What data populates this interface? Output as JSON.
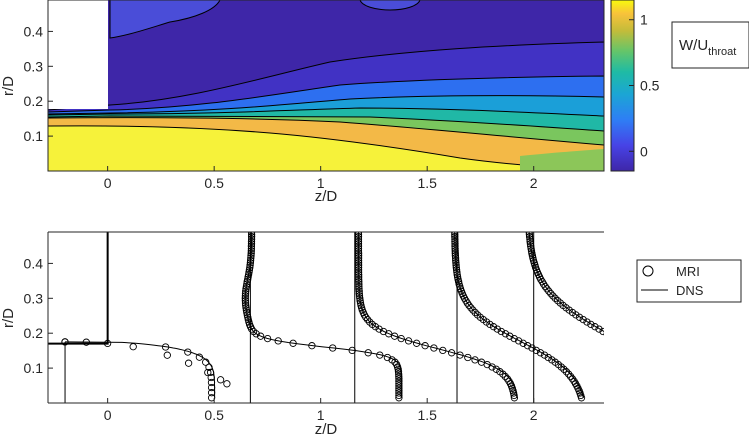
{
  "chart_data": [
    {
      "type": "heatmap",
      "description_panel": "top",
      "xlabel": "z/D",
      "ylabel": "r/D",
      "xlim": [
        -0.28,
        2.33
      ],
      "ylim": [
        0,
        0.49
      ],
      "xticks": [
        "0",
        "0.5",
        "1",
        "1.5",
        "2"
      ],
      "xtick_values": [
        0,
        0.5,
        1,
        1.5,
        2
      ],
      "yticks": [
        "0.1",
        "0.2",
        "0.3",
        "0.4"
      ],
      "ytick_values": [
        0.1,
        0.2,
        0.3,
        0.4
      ],
      "colorbar": {
        "label_main": "W/U",
        "label_sub": "throat",
        "ticks": [
          "1",
          "0.5",
          "0"
        ],
        "tick_values": [
          1,
          0.5,
          0
        ],
        "range": [
          -0.15,
          1.15
        ],
        "colormap": "parula"
      },
      "geometry_wall": {
        "z_end": 0,
        "r_start": 0.17
      },
      "jet_core": {
        "r_inlet": 0.175
      },
      "contour_levels": [
        0.0,
        0.2,
        0.4,
        0.6,
        0.8,
        1.0
      ]
    },
    {
      "type": "line",
      "description_panel": "bottom",
      "xlabel": "z/D",
      "ylabel": "r/D",
      "xlim": [
        -0.28,
        2.33
      ],
      "ylim": [
        0,
        0.49
      ],
      "xticks": [
        "0",
        "0.5",
        "1",
        "1.5",
        "2"
      ],
      "xtick_values": [
        0,
        0.5,
        1,
        1.5,
        2
      ],
      "yticks": [
        "0.1",
        "0.2",
        "0.3",
        "0.4"
      ],
      "ytick_values": [
        0.1,
        0.2,
        0.3,
        0.4
      ],
      "legend": {
        "position": "right",
        "entries": [
          "MRI",
          "DNS"
        ]
      },
      "stations_z": [
        -0.2,
        0.67,
        1.16,
        1.64,
        2.0
      ],
      "profile_scale_per_unit_W": 0.6,
      "series": [
        {
          "name": "MRI",
          "marker": "circle"
        },
        {
          "name": "DNS",
          "marker": "line"
        }
      ]
    }
  ]
}
